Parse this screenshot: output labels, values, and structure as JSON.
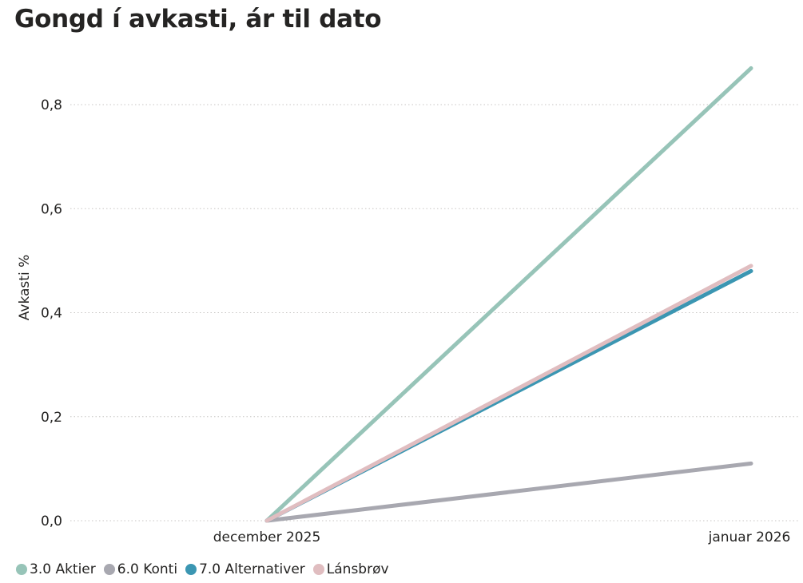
{
  "chart_data": {
    "type": "line",
    "title": "Gongd í avkasti, ár til dato",
    "xlabel": "",
    "ylabel": "Avkasti %",
    "x": [
      "december 2025",
      "januar 2026"
    ],
    "ylim": [
      0,
      0.85
    ],
    "yticks": [
      0.0,
      0.2,
      0.4,
      0.6,
      0.8
    ],
    "ytick_labels": [
      "0,0",
      "0,2",
      "0,4",
      "0,6",
      "0,8"
    ],
    "grid": true,
    "legend": "bottom-left",
    "series": [
      {
        "name": "3.0 Aktier",
        "color": "#97c4b8",
        "values": [
          0.0,
          0.87
        ]
      },
      {
        "name": "6.0 Konti",
        "color": "#a8a8b0",
        "values": [
          0.0,
          0.11
        ]
      },
      {
        "name": "7.0 Alternativer",
        "color": "#3b96b2",
        "values": [
          0.0,
          0.48
        ]
      },
      {
        "name": "Lánsbrøv",
        "color": "#e0bdc0",
        "values": [
          0.0,
          0.49
        ]
      }
    ]
  }
}
